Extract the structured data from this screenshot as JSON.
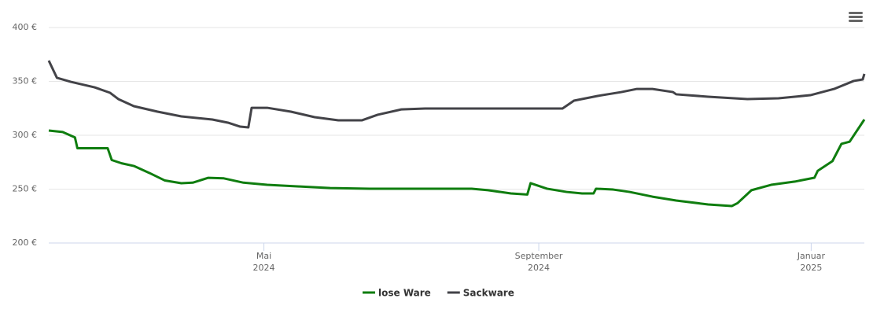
{
  "chart_data": {
    "type": "line",
    "xlim": [
      2024.068,
      2025.065
    ],
    "xticks": [
      {
        "value": 2024.331,
        "label": [
          "Mai",
          "2024"
        ]
      },
      {
        "value": 2024.667,
        "label": [
          "September",
          "2024"
        ]
      },
      {
        "value": 2025.0,
        "label": [
          "Januar",
          "2025"
        ]
      }
    ],
    "ylim": [
      200,
      400
    ],
    "yticks": [
      {
        "value": 200,
        "label": "200 €"
      },
      {
        "value": 250,
        "label": "250 €"
      },
      {
        "value": 300,
        "label": "300 €"
      },
      {
        "value": 350,
        "label": "350 €"
      },
      {
        "value": 400,
        "label": "400 €"
      }
    ],
    "grid": true,
    "legend": "bottom",
    "series": [
      {
        "name": "lose Ware",
        "color": "#0f7d0f",
        "x": [
          2024.068,
          2024.085,
          2024.1,
          2024.103,
          2024.14,
          2024.145,
          2024.157,
          2024.172,
          2024.191,
          2024.21,
          2024.23,
          2024.244,
          2024.263,
          2024.282,
          2024.306,
          2024.335,
          2024.374,
          2024.412,
          2024.46,
          2024.528,
          2024.585,
          2024.605,
          2024.633,
          2024.653,
          2024.657,
          2024.667,
          2024.677,
          2024.701,
          2024.72,
          2024.734,
          2024.737,
          2024.758,
          2024.778,
          2024.806,
          2024.835,
          2024.874,
          2024.903,
          2024.91,
          2024.927,
          2024.951,
          2024.98,
          2025.004,
          2025.008,
          2025.026,
          2025.037,
          2025.047,
          2025.065
        ],
        "values": [
          304.4,
          303,
          298,
          288,
          288,
          277,
          274,
          271.5,
          265,
          258,
          255.5,
          256,
          260.5,
          260,
          256,
          254,
          252.5,
          251,
          250.4,
          250.4,
          250.4,
          249,
          246,
          245,
          255.5,
          253,
          250.4,
          247.4,
          246,
          246,
          250.4,
          249.6,
          247.4,
          243,
          239.4,
          235.8,
          234.3,
          237,
          249,
          254,
          257,
          260.6,
          267,
          276,
          292,
          294,
          314.6
        ]
      },
      {
        "name": "Sackware",
        "color": "#434348",
        "x": [
          2024.068,
          2024.078,
          2024.095,
          2024.124,
          2024.143,
          2024.153,
          2024.172,
          2024.201,
          2024.23,
          2024.268,
          2024.287,
          2024.302,
          2024.312,
          2024.316,
          2024.335,
          2024.364,
          2024.393,
          2024.422,
          2024.451,
          2024.47,
          2024.499,
          2024.528,
          2024.585,
          2024.643,
          2024.696,
          2024.71,
          2024.739,
          2024.768,
          2024.787,
          2024.806,
          2024.831,
          2024.835,
          2024.874,
          2024.922,
          2024.96,
          2024.999,
          2025.028,
          2025.052,
          2025.063,
          2025.065
        ],
        "values": [
          369.3,
          353.3,
          349.6,
          344.5,
          339.4,
          333.6,
          327,
          321.9,
          317.5,
          314.6,
          311.7,
          308,
          307.3,
          325.5,
          325.5,
          321.9,
          316.8,
          313.9,
          313.9,
          319,
          324,
          324.8,
          324.8,
          324.8,
          324.8,
          332.1,
          336.5,
          340.1,
          343,
          343,
          340.1,
          338,
          335.8,
          333.6,
          334.3,
          337.2,
          343,
          350.4,
          351.8,
          357
        ]
      }
    ]
  }
}
